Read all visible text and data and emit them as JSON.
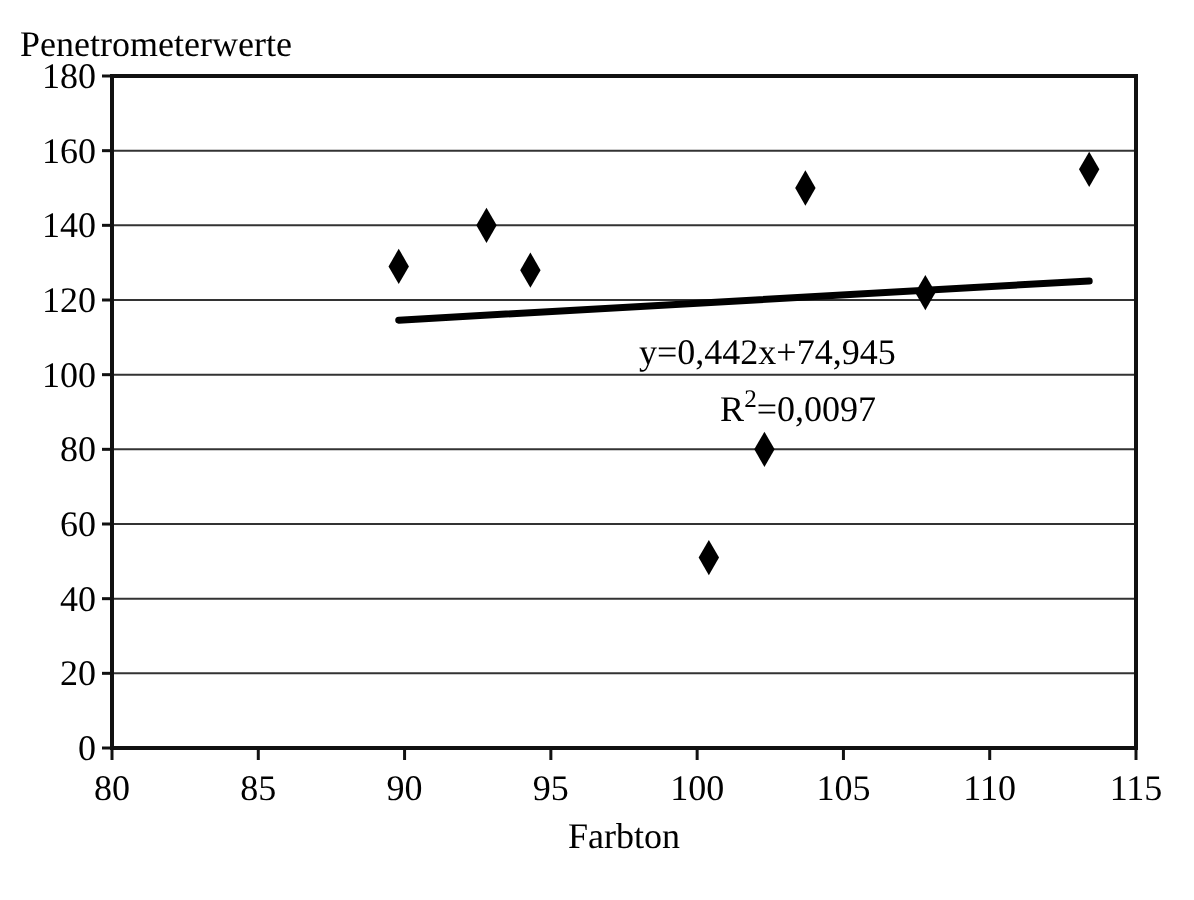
{
  "chart_data": {
    "type": "scatter",
    "ylabel": "Penetrometerwerte",
    "xlabel": "Farbton",
    "xlim": [
      80,
      115
    ],
    "xticks": [
      80,
      85,
      90,
      95,
      100,
      105,
      110,
      115
    ],
    "ylim": [
      0,
      180
    ],
    "yticks": [
      0,
      20,
      40,
      60,
      80,
      100,
      120,
      140,
      160,
      180
    ],
    "grid": "y",
    "marker": "diamond",
    "series": [
      {
        "color": "#000000",
        "x": [
          89.8,
          92.8,
          94.3,
          100.4,
          102.3,
          103.7,
          107.8,
          113.4
        ],
        "values": [
          129,
          140,
          128,
          51,
          80,
          150,
          122,
          155
        ]
      },
      {
        "type": "line",
        "color": "#000000",
        "marker": "none",
        "line_style": "solid",
        "x": [
          89.8,
          113.4
        ],
        "values": [
          114.6,
          125.1
        ]
      }
    ],
    "annotations": [
      "y=0,442x+74,945",
      "R$^{2}$=0,0097"
    ]
  }
}
